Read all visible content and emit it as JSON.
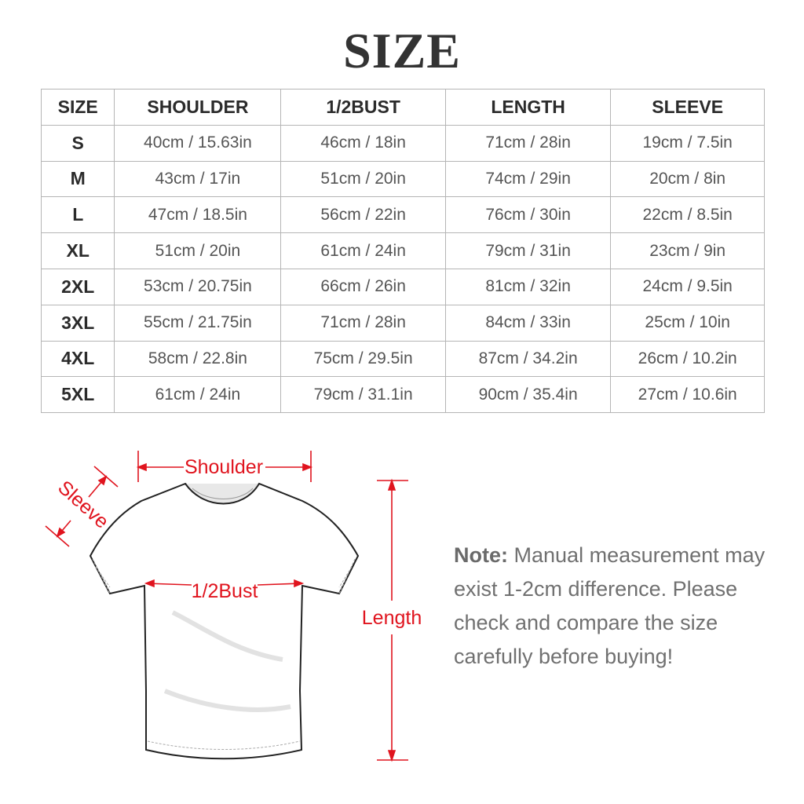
{
  "title": "SIZE",
  "table": {
    "headers": [
      "SIZE",
      "SHOULDER",
      "1/2BUST",
      "LENGTH",
      "SLEEVE"
    ],
    "rows": [
      [
        "S",
        "40cm / 15.63in",
        "46cm / 18in",
        "71cm / 28in",
        "19cm / 7.5in"
      ],
      [
        "M",
        "43cm / 17in",
        "51cm / 20in",
        "74cm / 29in",
        "20cm / 8in"
      ],
      [
        "L",
        "47cm / 18.5in",
        "56cm / 22in",
        "76cm / 30in",
        "22cm / 8.5in"
      ],
      [
        "XL",
        "51cm / 20in",
        "61cm / 24in",
        "79cm / 31in",
        "23cm / 9in"
      ],
      [
        "2XL",
        "53cm / 20.75in",
        "66cm / 26in",
        "81cm / 32in",
        "24cm / 9.5in"
      ],
      [
        "3XL",
        "55cm / 21.75in",
        "71cm / 28in",
        "84cm / 33in",
        "25cm / 10in"
      ],
      [
        "4XL",
        "58cm / 22.8in",
        "75cm / 29.5in",
        "87cm / 34.2in",
        "26cm / 10.2in"
      ],
      [
        "5XL",
        "61cm / 24in",
        "79cm / 31.1in",
        "90cm / 35.4in",
        "27cm / 10.6in"
      ]
    ]
  },
  "diagram": {
    "shoulder": "Shoulder",
    "sleeve": "Sleeve",
    "bust": "1/2Bust",
    "length": "Length",
    "accent_color": "#e0141e"
  },
  "note": {
    "label": "Note:",
    "text": "Manual measurement may exist 1-2cm difference. Please check and compare the size carefully before buying!"
  }
}
